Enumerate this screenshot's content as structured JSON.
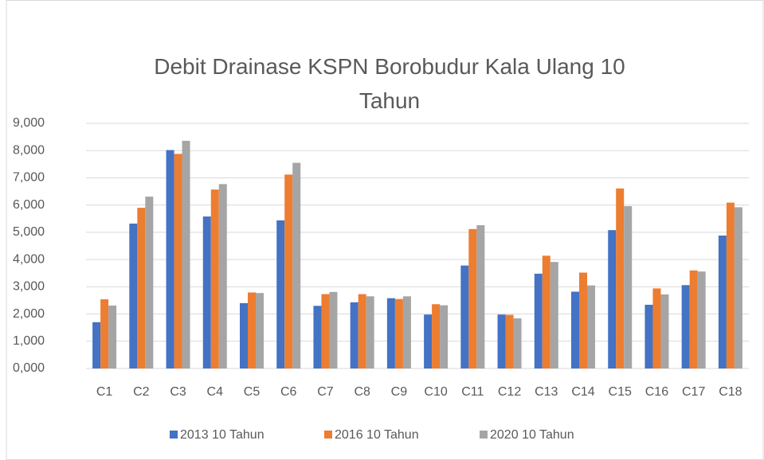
{
  "chart_data": {
    "type": "bar",
    "title": "Debit Drainase KSPN Borobudur Kala Ulang 10 Tahun",
    "categories": [
      "C1",
      "C2",
      "C3",
      "C4",
      "C5",
      "C6",
      "C7",
      "C8",
      "C9",
      "C10",
      "C11",
      "C12",
      "C13",
      "C14",
      "C15",
      "C16",
      "C17",
      "C18"
    ],
    "series": [
      {
        "name": "2013 10 Tahun",
        "color": "#4472c4",
        "values": [
          1700,
          5320,
          8020,
          5580,
          2400,
          5440,
          2300,
          2430,
          2580,
          1980,
          3780,
          1980,
          3480,
          2820,
          5080,
          2340,
          3060,
          4880
        ]
      },
      {
        "name": "2016 10 Tahun",
        "color": "#ed7d31",
        "values": [
          2540,
          5900,
          7880,
          6570,
          2790,
          7120,
          2730,
          2730,
          2550,
          2360,
          5120,
          1970,
          4140,
          3520,
          6610,
          2940,
          3600,
          6090
        ]
      },
      {
        "name": "2020 10 Tahun",
        "color": "#a5a5a5",
        "values": [
          2310,
          6310,
          8360,
          6770,
          2770,
          7550,
          2810,
          2650,
          2650,
          2320,
          5260,
          1840,
          3910,
          3050,
          5960,
          2720,
          3560,
          5920
        ]
      }
    ],
    "ylim": [
      0,
      9000
    ],
    "yticks": [
      {
        "value": 0,
        "label": "0,000"
      },
      {
        "value": 1000,
        "label": "1,000"
      },
      {
        "value": 2000,
        "label": "2,000"
      },
      {
        "value": 3000,
        "label": "3,000"
      },
      {
        "value": 4000,
        "label": "4,000"
      },
      {
        "value": 5000,
        "label": "5,000"
      },
      {
        "value": 6000,
        "label": "6,000"
      },
      {
        "value": 7000,
        "label": "7,000"
      },
      {
        "value": 8000,
        "label": "8,000"
      },
      {
        "value": 9000,
        "label": "9,000"
      }
    ],
    "grid": true,
    "legend": "bottom"
  }
}
